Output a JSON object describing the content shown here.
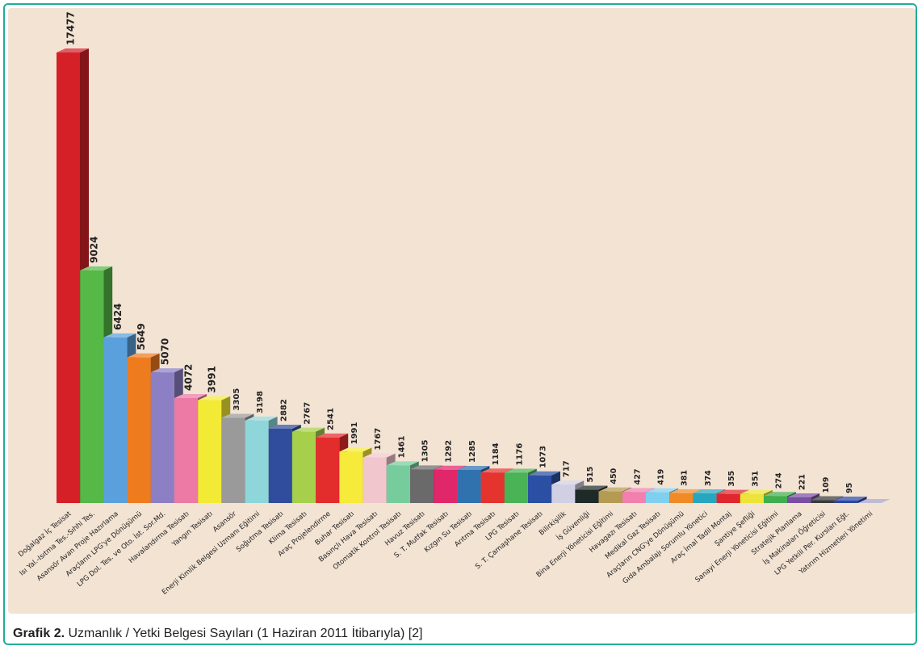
{
  "caption": {
    "label": "Grafik 2.",
    "text": "Uzmanlık / Yetki Belgesi Sayıları (1 Haziran 2011 İtibarıyla) [2]"
  },
  "chart_data": {
    "type": "bar",
    "title": "",
    "xlabel": "",
    "ylabel": "",
    "grid": false,
    "legend": "none",
    "ylim": [
      0,
      17477
    ],
    "categories": [
      "Doğalgaz İç Tesisat",
      "Isı Yal.-Isıtma Tes.-Sıhhi Tes.",
      "Asansör Avan Proje Hazırlama",
      "Araçların LPG'ye Dönüşümü",
      "LPG Dol. Tes. ve Oto. İst. Sor.Md.",
      "Havalandırma Tesisatı",
      "Yangın Tesisatı",
      "Asansör",
      "Enerji Kimlik Belgesi Uzmanı Eğitimi",
      "Soğutma Tesisatı",
      "Klima Tesisatı",
      "Araç Projelendirme",
      "Buhar Tesisatı",
      "Basınçlı Hava Tesisatı",
      "Otomatik Kontrol Tesisatı",
      "Havuz Tesisatı",
      "S. T. Mutfak Tesisatı",
      "Kızgın Su Tesisatı",
      "Arıtma Tesisatı",
      "LPG Tesisatı",
      "S. T. Çamaşhane Tesisatı",
      "Bilirkişilik",
      "İş Güvenliği",
      "Bina Enerji Yöneticisi Eğitimi",
      "Havagazı Tesisatı",
      "Medikal Gaz Tesisatı",
      "Araçların CNG'ye Dönüşümü",
      "Gıda Ambalajı Sorumlu Yönetici",
      "Araç İmal Tadil Montaj",
      "Şantiye Şefliği",
      "Sanayi Enerji Yöneticisi Eğitimi",
      "Stratejik Planlama",
      "İş Makinaları Öğreticisi",
      "LPG Yetkili Per. Kursları Eğt.",
      "Yatırım Hizmetleri Yönetimi"
    ],
    "values": [
      17477,
      9024,
      6424,
      5649,
      5070,
      4072,
      3991,
      3305,
      3198,
      2882,
      2767,
      2541,
      1991,
      1767,
      1461,
      1305,
      1292,
      1285,
      1184,
      1176,
      1073,
      717,
      515,
      450,
      427,
      419,
      381,
      374,
      355,
      351,
      274,
      221,
      109,
      95,
      null
    ],
    "value_labels": [
      "17477",
      "9024",
      "6424",
      "5649",
      "5070",
      "4072",
      "3991",
      "3305",
      "3198",
      "2882",
      "2767",
      "2541",
      "1991",
      "1767",
      "1461",
      "1305",
      "1292",
      "1285",
      "1184",
      "1176",
      "1073",
      "717",
      "515",
      "450",
      "427",
      "419",
      "381",
      "374",
      "355",
      "351",
      "274",
      "221",
      "109",
      "95",
      ""
    ],
    "bar_colors": [
      "#d42026",
      "#55b847",
      "#5aa0dc",
      "#ef7b1f",
      "#8c7fc4",
      "#ec7aa5",
      "#f3ea35",
      "#9a9a9a",
      "#8ed6d9",
      "#2f4d9c",
      "#a6cf4b",
      "#e32c2c",
      "#f6ea3a",
      "#f1c6cc",
      "#76cc9d",
      "#6a6a6a",
      "#e0276a",
      "#2f72ae",
      "#e5332d",
      "#49b356",
      "#2b4fa2",
      "#d1cfe3",
      "#1f2a28",
      "#b59a52",
      "#f27fae",
      "#7fd0ee",
      "#f08a26",
      "#27a6bf",
      "#e0272d",
      "#ece43a",
      "#3fae4f",
      "#7a4ea3",
      "#3a3a3a",
      "#2c47a3",
      "#a59fcc"
    ]
  }
}
